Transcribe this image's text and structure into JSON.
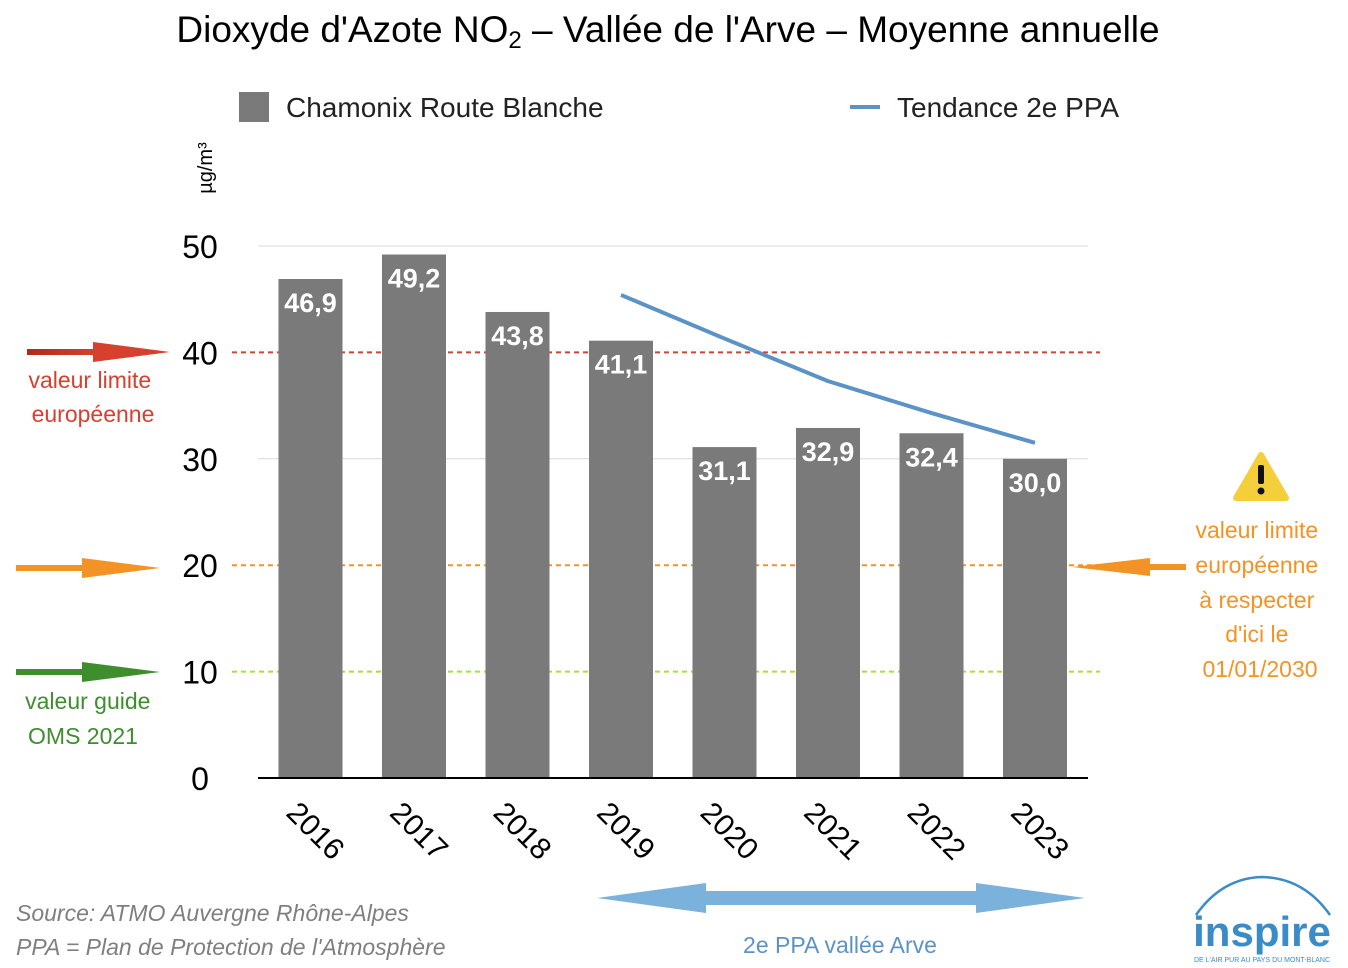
{
  "colors": {
    "bar": "#7a7a7a",
    "trend": "#5b93c7",
    "eu_limit": "#d6402f",
    "eu_limit_2030": "#f39325",
    "who_guide": "#3e8e2e",
    "who_line": "#a6e03a",
    "ppa_arrow": "#7ab2dc",
    "source_text": "#7f7f7f",
    "logo": "#3a8cc8"
  },
  "chart_data": {
    "type": "bar",
    "title_main": "Dioxyde d'Azote NO",
    "title_sub": "2",
    "title_rest": " – Vallée de l'Arve – Moyenne annuelle",
    "ylabel": "µg/m³",
    "ylim": [
      0,
      50
    ],
    "yticks": [
      "0",
      "10",
      "20",
      "30",
      "40",
      "50"
    ],
    "categories": [
      "2016",
      "2017",
      "2018",
      "2019",
      "2020",
      "2021",
      "2022",
      "2023"
    ],
    "series": [
      {
        "name": "Chamonix Route Blanche",
        "values": [
          46.9,
          49.2,
          43.8,
          41.1,
          31.1,
          32.9,
          32.4,
          30.0
        ],
        "labels": [
          "46,9",
          "49,2",
          "43,8",
          "41,1",
          "31,1",
          "32,9",
          "32,4",
          "30,0"
        ]
      },
      {
        "name": "Tendance 2e PPA",
        "type": "line",
        "x": [
          "2019",
          "2020",
          "2021",
          "2022",
          "2023"
        ],
        "values": [
          45.4,
          41.3,
          37.3,
          34.3,
          31.5
        ]
      }
    ],
    "reference_lines": [
      {
        "value": 40,
        "style": "dashed",
        "color_key": "eu_limit"
      },
      {
        "value": 20,
        "style": "dashed",
        "color_key": "eu_limit_2030"
      },
      {
        "value": 10,
        "style": "dashed",
        "color_key": "who_line"
      }
    ],
    "legend": [
      "Chamonix Route Blanche",
      "Tendance 2e PPA"
    ],
    "legend_position": "top"
  },
  "annotations": {
    "eu_limit": [
      "valeur limite",
      "européenne"
    ],
    "who_guide": [
      "valeur guide",
      "OMS 2021"
    ],
    "eu_limit_2030": [
      "valeur limite",
      "européenne",
      "à respecter",
      "d'ici le",
      "01/01/2030"
    ],
    "warning_icon": "warning-triangle-icon",
    "ppa_period": "2e PPA vallée Arve"
  },
  "footer": {
    "source": "Source: ATMO Auvergne Rhône-Alpes",
    "ppa_definition": "PPA = Plan de Protection de l'Atmosphère"
  },
  "logo": {
    "name": "inspire",
    "tagline": "DE L'AIR PUR AU PAYS DU MONT-BLANC"
  }
}
